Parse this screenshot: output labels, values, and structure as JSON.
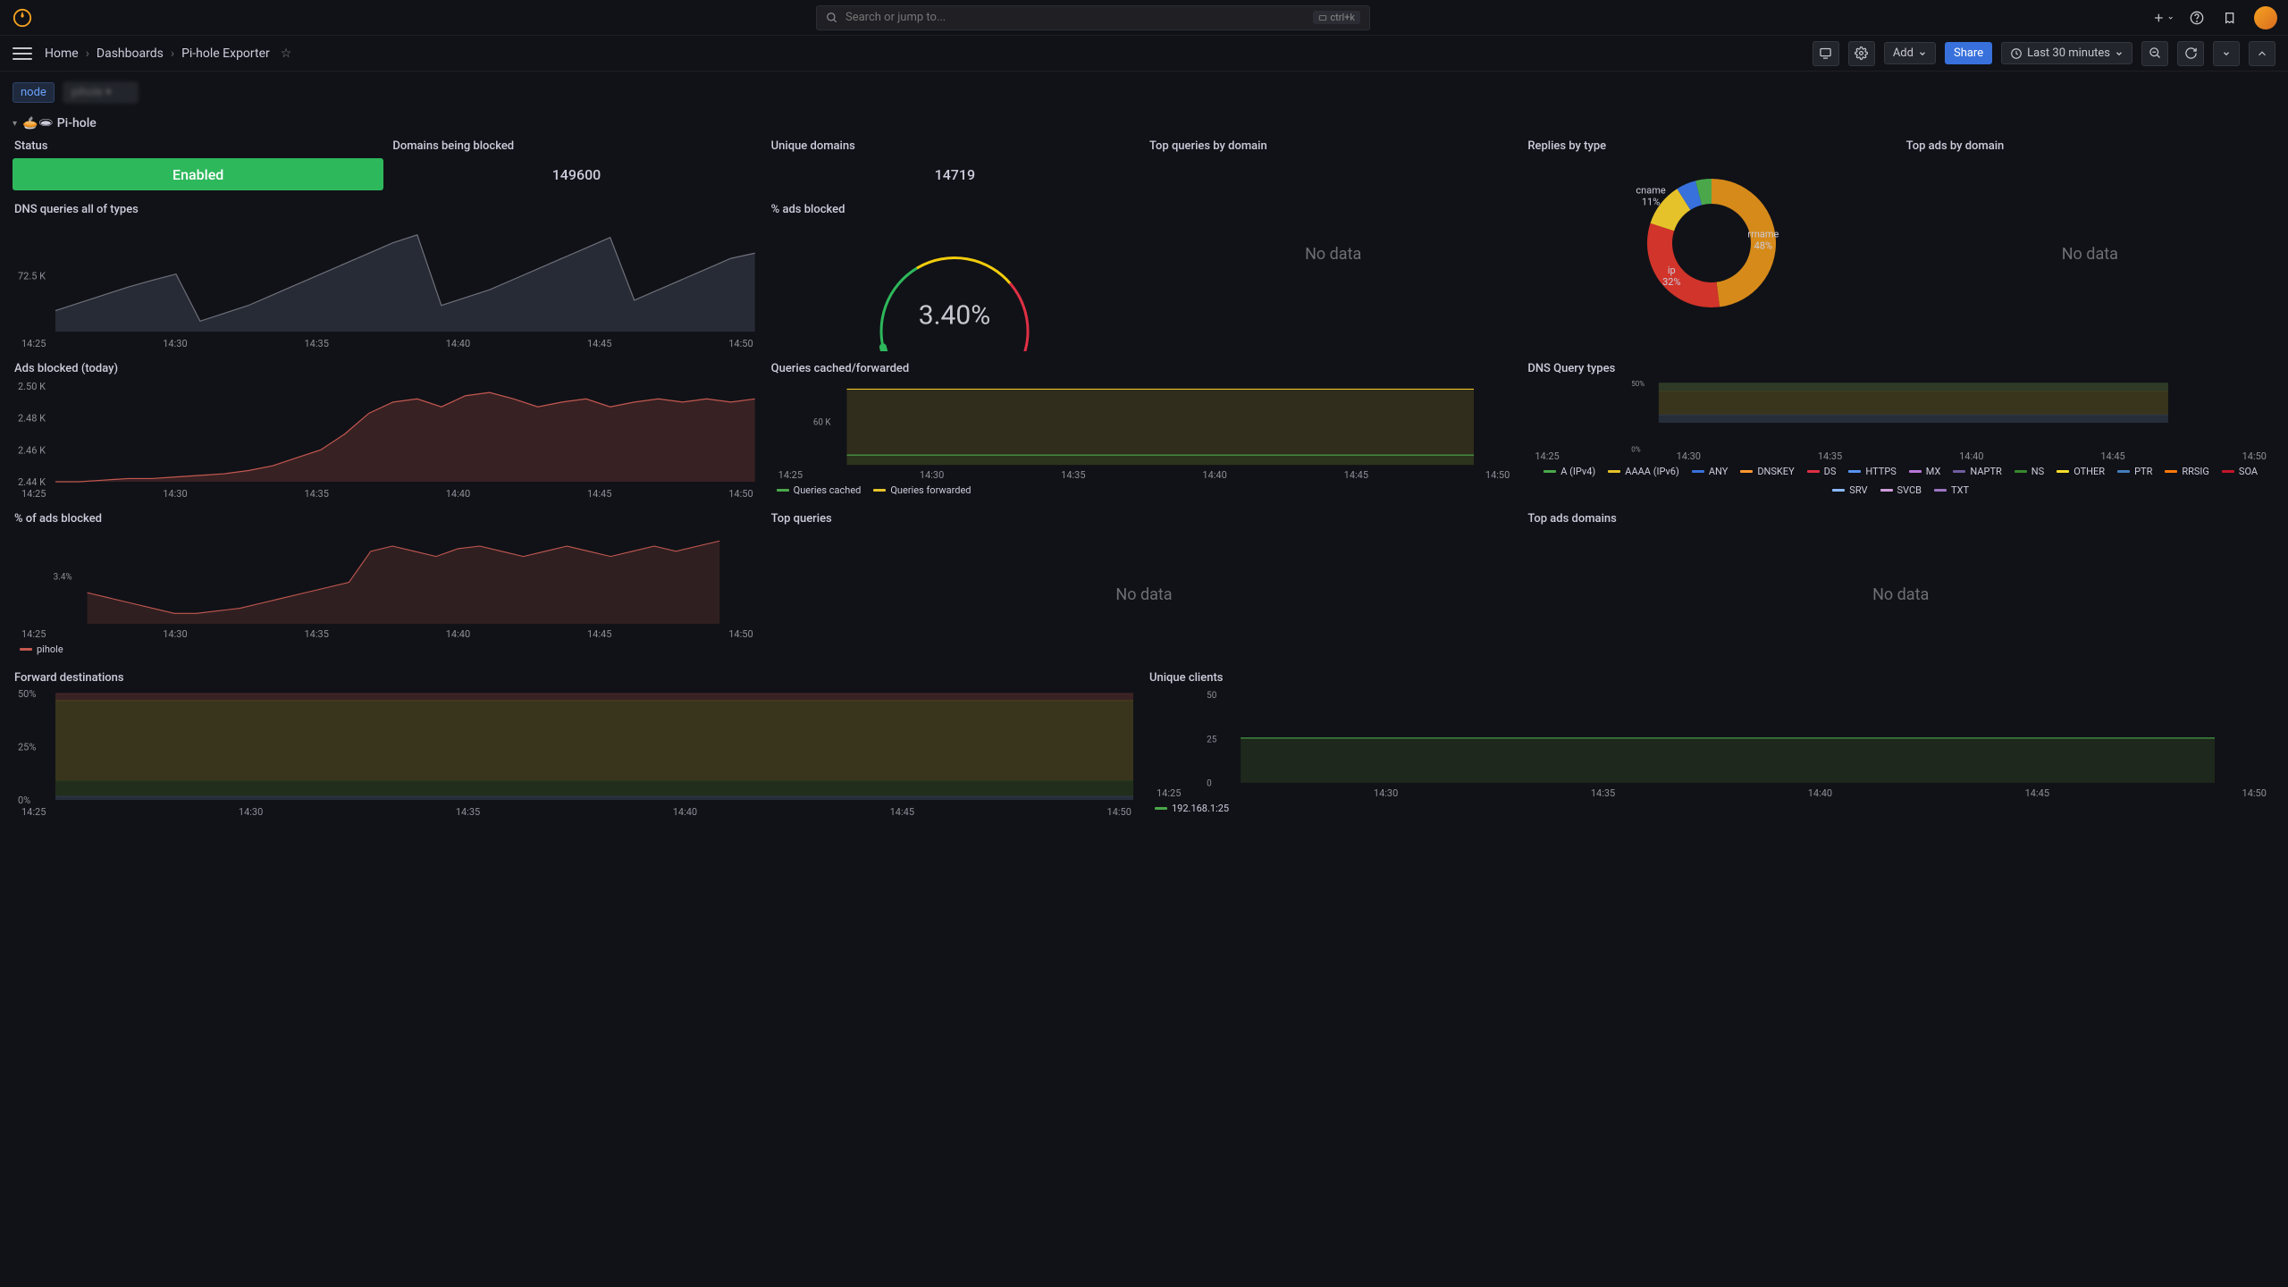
{
  "colors": {
    "bg": "#111217",
    "panel_bg": "#181b1f",
    "text": "#ccccdc",
    "muted": "#8e8e99",
    "green": "#2eb85c",
    "blue": "#3871dc",
    "yellow": "#f2cc0c",
    "orange": "#ff9830",
    "red": "#e02f44",
    "purple": "#b877d9",
    "line_grey": "#6e7079",
    "area_blue": "#4b5a7a",
    "area_red": "#7a3a3a",
    "area_green": "#3a6a3a"
  },
  "topbar": {
    "search_placeholder": "Search or jump to...",
    "kbd_hint": "ctrl+k"
  },
  "breadcrumb": {
    "home": "Home",
    "dashboards": "Dashboards",
    "current": "Pi-hole Exporter"
  },
  "toolbar": {
    "add": "Add",
    "share": "Share",
    "timerange": "Last 30 minutes"
  },
  "vars": {
    "label": "node",
    "value": "pihole"
  },
  "row_title": "🥧🕳 Pi-hole",
  "panels": {
    "status": {
      "title": "Status",
      "value": "Enabled"
    },
    "domains_blocked": {
      "title": "Domains being blocked",
      "value": "149600"
    },
    "unique_domains": {
      "title": "Unique domains",
      "value": "14719"
    },
    "top_queries_domain": {
      "title": "Top queries by domain",
      "nodata": "No data"
    },
    "replies_type": {
      "title": "Replies by type",
      "slices": [
        {
          "label": "rrname",
          "pct": 48,
          "color": "#d68a1a"
        },
        {
          "label": "ip",
          "pct": 32,
          "color": "#d1342a"
        },
        {
          "label": "cname",
          "pct": 11,
          "color": "#e6c22a"
        },
        {
          "label": "",
          "pct": 5,
          "color": "#3871dc"
        },
        {
          "label": "",
          "pct": 4,
          "color": "#4aa84a"
        }
      ]
    },
    "top_ads_domain": {
      "title": "Top ads by domain",
      "nodata": "No data"
    },
    "dns_queries_all": {
      "title": "DNS queries all of types",
      "ylabel": "72.5 K",
      "xticks": [
        "14:25",
        "14:30",
        "14:35",
        "14:40",
        "14:45",
        "14:50"
      ],
      "ymin": 71500,
      "ymax": 73500,
      "series": [
        {
          "color": "#6e7079",
          "fill": "#3a4050",
          "points": [
            71900,
            72050,
            72200,
            72350,
            72480,
            72600,
            71700,
            71850,
            72000,
            72200,
            72400,
            72600,
            72800,
            73000,
            73200,
            73350,
            72000,
            72150,
            72300,
            72500,
            72700,
            72900,
            73100,
            73300,
            72100,
            72300,
            72500,
            72700,
            72900,
            73000
          ]
        }
      ]
    },
    "pct_ads_blocked_gauge": {
      "title": "% ads blocked",
      "value": "3.40%",
      "pct": 3.4,
      "colors": {
        "low": "#2eb85c",
        "mid": "#f2cc0c",
        "high": "#e02f44"
      }
    },
    "ads_blocked_today": {
      "title": "Ads blocked (today)",
      "yticks": [
        "2.50 K",
        "2.48 K",
        "2.46 K",
        "2.44 K"
      ],
      "xticks": [
        "14:25",
        "14:30",
        "14:35",
        "14:40",
        "14:45",
        "14:50"
      ],
      "ymin": 2440,
      "ymax": 2500,
      "series": [
        {
          "color": "#c45850",
          "fill": "#5a2e2e",
          "points": [
            2440,
            2440,
            2441,
            2442,
            2442,
            2443,
            2444,
            2445,
            2447,
            2450,
            2455,
            2460,
            2470,
            2483,
            2490,
            2492,
            2487,
            2494,
            2496,
            2492,
            2487,
            2490,
            2492,
            2487,
            2490,
            2492,
            2490,
            2492,
            2490,
            2492
          ]
        }
      ]
    },
    "queries_cached_fwd": {
      "title": "Queries cached/forwarded",
      "ylabel": "60 K",
      "xticks": [
        "14:25",
        "14:30",
        "14:35",
        "14:40",
        "14:45",
        "14:50"
      ],
      "legend": [
        {
          "label": "Queries cached",
          "color": "#4aa84a"
        },
        {
          "label": "Queries forwarded",
          "color": "#e6c22a"
        }
      ],
      "ymin": 0,
      "ymax": 65000,
      "series": [
        {
          "color": "#e6c22a",
          "fill": "#4a4320",
          "points": [
            62000,
            62000,
            62000,
            62000,
            62000,
            62000,
            62000,
            62000,
            62000,
            62000,
            62000,
            62000,
            62000,
            62000,
            62000,
            62000,
            62000,
            62000,
            62000,
            62000,
            62000,
            62000,
            62000,
            62000,
            62000,
            62000,
            62000,
            62000,
            62000,
            62000
          ]
        },
        {
          "color": "#4aa84a",
          "fill": "#2a3a20",
          "points": [
            8000,
            8000,
            8000,
            8000,
            8000,
            8000,
            8000,
            8000,
            8000,
            8000,
            8000,
            8000,
            8000,
            8000,
            8000,
            8000,
            8000,
            8000,
            8000,
            8000,
            8000,
            8000,
            8000,
            8000,
            8000,
            8000,
            8000,
            8000,
            8000,
            8000
          ]
        }
      ]
    },
    "dns_query_types": {
      "title": "DNS Query types",
      "yticks": [
        "50%",
        "0%"
      ],
      "xticks": [
        "14:25",
        "14:30",
        "14:35",
        "14:40",
        "14:45",
        "14:50"
      ],
      "legend": [
        {
          "label": "A (IPv4)",
          "color": "#4aa84a"
        },
        {
          "label": "AAAA (IPv6)",
          "color": "#e6c22a"
        },
        {
          "label": "ANY",
          "color": "#3871dc"
        },
        {
          "label": "DNSKEY",
          "color": "#ff9830"
        },
        {
          "label": "DS",
          "color": "#e02f44"
        },
        {
          "label": "HTTPS",
          "color": "#5794f2"
        },
        {
          "label": "MX",
          "color": "#b877d9"
        },
        {
          "label": "NAPTR",
          "color": "#705da0"
        },
        {
          "label": "NS",
          "color": "#37872d"
        },
        {
          "label": "OTHER",
          "color": "#fade2a"
        },
        {
          "label": "PTR",
          "color": "#447ebc"
        },
        {
          "label": "RRSIG",
          "color": "#ff780a"
        },
        {
          "label": "SOA",
          "color": "#c4162a"
        },
        {
          "label": "SRV",
          "color": "#8ab8ff"
        },
        {
          "label": "SVCB",
          "color": "#ce9dd9"
        },
        {
          "label": "TXT",
          "color": "#9d75c4"
        }
      ],
      "bands": [
        {
          "y": 50,
          "h": 6,
          "color": "#3a4a2e"
        },
        {
          "y": 44,
          "h": 18,
          "color": "#4a4320"
        },
        {
          "y": 26,
          "h": 6,
          "color": "#2e3a4a"
        }
      ]
    },
    "pct_ads_blocked_ts": {
      "title": "% of ads blocked",
      "ylabel": "3.4%",
      "xticks": [
        "14:25",
        "14:30",
        "14:35",
        "14:40",
        "14:45",
        "14:50"
      ],
      "legend": [
        {
          "label": "pihole",
          "color": "#c45850"
        }
      ],
      "ymin": 3.28,
      "ymax": 3.45,
      "series": [
        {
          "color": "#c45850",
          "fill": "#4a2a2a",
          "points": [
            3.34,
            3.33,
            3.32,
            3.31,
            3.3,
            3.3,
            3.305,
            3.31,
            3.32,
            3.33,
            3.34,
            3.35,
            3.36,
            3.42,
            3.43,
            3.42,
            3.41,
            3.425,
            3.43,
            3.42,
            3.41,
            3.42,
            3.43,
            3.42,
            3.41,
            3.42,
            3.43,
            3.42,
            3.43,
            3.44
          ]
        }
      ]
    },
    "top_queries": {
      "title": "Top queries",
      "nodata": "No data"
    },
    "top_ads_domains": {
      "title": "Top ads domains",
      "nodata": "No data"
    },
    "forward_dest": {
      "title": "Forward destinations",
      "yticks": [
        "50%",
        "25%",
        "0%"
      ],
      "xticks": [
        "14:25",
        "14:30",
        "14:35",
        "14:40",
        "14:45",
        "14:50"
      ],
      "bands": [
        {
          "y": 61,
          "h": 4,
          "color": "#4a2a2a"
        },
        {
          "y": 57,
          "h": 46,
          "color": "#4a4320"
        },
        {
          "y": 11,
          "h": 9,
          "color": "#2a3a20"
        },
        {
          "y": 2,
          "h": 2,
          "color": "#2e3a4a"
        }
      ]
    },
    "unique_clients": {
      "title": "Unique clients",
      "yticks": [
        "50",
        "25",
        "0"
      ],
      "xticks": [
        "14:25",
        "14:30",
        "14:35",
        "14:40",
        "14:45",
        "14:50"
      ],
      "legend": [
        {
          "label": "192.168.1:25",
          "color": "#4aa84a"
        }
      ],
      "ymin": 0,
      "ymax": 55,
      "series": [
        {
          "color": "#4aa84a",
          "fill": "#2a3a20",
          "points": [
            28,
            28,
            28,
            28,
            28,
            28,
            28,
            28,
            28,
            28,
            28,
            28,
            28,
            28,
            28,
            28,
            28,
            28,
            28,
            28,
            28,
            28,
            28,
            28,
            28,
            28,
            28,
            28,
            28,
            28
          ]
        }
      ]
    }
  }
}
